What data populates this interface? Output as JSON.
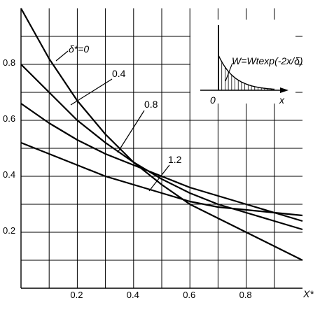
{
  "chart_data": {
    "type": "line",
    "xlim": [
      0,
      1.0
    ],
    "ylim": [
      0,
      1.0
    ],
    "grid": true,
    "xlabel": "X*",
    "ylabel": "",
    "x_ticks": [
      {
        "value": 0.2,
        "label": "0.2"
      },
      {
        "value": 0.4,
        "label": "0.4"
      },
      {
        "value": 0.6,
        "label": "0.6"
      },
      {
        "value": 0.8,
        "label": "0.8"
      }
    ],
    "y_ticks": [
      {
        "value": 0.2,
        "label": "0.2"
      },
      {
        "value": 0.4,
        "label": "0.4"
      },
      {
        "value": 0.6,
        "label": "0.6"
      },
      {
        "value": 0.8,
        "label": "0.8"
      }
    ],
    "series": [
      {
        "name": "δ*=0",
        "x": [
          0,
          0.1,
          0.2,
          0.3,
          0.4,
          0.5,
          0.6,
          0.7,
          0.8,
          0.9,
          1.0
        ],
        "y": [
          1.0,
          0.82,
          0.67,
          0.55,
          0.45,
          0.37,
          0.3,
          0.25,
          0.2,
          0.15,
          0.1
        ]
      },
      {
        "name": "0.4",
        "x": [
          0,
          0.1,
          0.2,
          0.3,
          0.4,
          0.5,
          0.6,
          0.7,
          0.8,
          0.9,
          1.0
        ],
        "y": [
          0.8,
          0.7,
          0.6,
          0.52,
          0.45,
          0.39,
          0.34,
          0.3,
          0.27,
          0.24,
          0.21
        ]
      },
      {
        "name": "0.8",
        "x": [
          0,
          0.1,
          0.2,
          0.3,
          0.4,
          0.5,
          0.6,
          0.7,
          0.8,
          0.9,
          1.0
        ],
        "y": [
          0.66,
          0.59,
          0.53,
          0.48,
          0.44,
          0.4,
          0.36,
          0.33,
          0.3,
          0.27,
          0.24
        ]
      },
      {
        "name": "1.2",
        "x": [
          0,
          0.1,
          0.2,
          0.3,
          0.4,
          0.5,
          0.6,
          0.7,
          0.8,
          0.9,
          1.0
        ],
        "y": [
          0.52,
          0.48,
          0.44,
          0.4,
          0.37,
          0.34,
          0.31,
          0.29,
          0.28,
          0.27,
          0.26
        ]
      }
    ],
    "annotations": {
      "label_delta": "δ*=0",
      "label_04": "0.4",
      "label_08": "0.8",
      "label_12": "1.2"
    },
    "inset": {
      "formula": "W=Wtexp(-2x/δ)",
      "origin_label": "0",
      "x_axis_label": "x"
    }
  }
}
